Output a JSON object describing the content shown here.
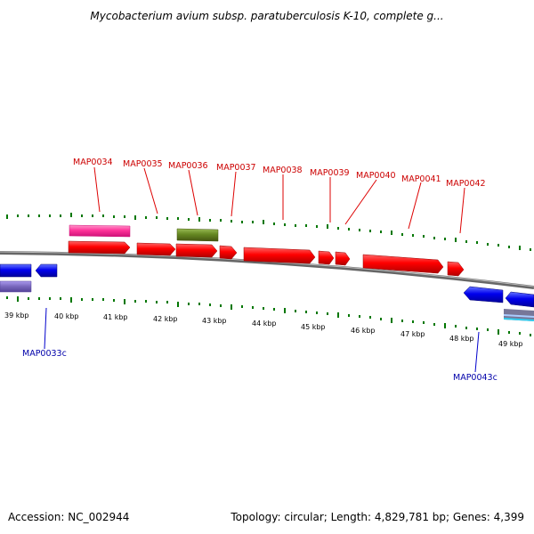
{
  "title": "Mycobacterium avium subsp. paratuberculosis K-10, complete g...",
  "footer": {
    "accession": "Accession: NC_002944",
    "summary": "Topology: circular; Length: 4,829,781 bp; Genes: 4,399"
  },
  "colors": {
    "forward_gene": "#ff0000",
    "reverse_gene": "#0000dd",
    "forward_label": "#cc0000",
    "reverse_label": "#0000aa",
    "tick": "#007700",
    "backbone": "#808080",
    "pink_feature": "#ff3399",
    "olive_feature": "#668822",
    "purple_feature": "#7766bb"
  },
  "axis": {
    "ticks": [
      "39 kbp",
      "40 kbp",
      "41 kbp",
      "42 kbp",
      "43 kbp",
      "44 kbp",
      "45 kbp",
      "46 kbp",
      "47 kbp",
      "48 kbp",
      "49 kbp"
    ]
  },
  "forward_genes": [
    "MAP0034",
    "MAP0035",
    "MAP0036",
    "MAP0037",
    "MAP0038",
    "MAP0039",
    "MAP0040",
    "MAP0041",
    "MAP0042"
  ],
  "reverse_genes": [
    "MAP0033c",
    "MAP0043c"
  ]
}
